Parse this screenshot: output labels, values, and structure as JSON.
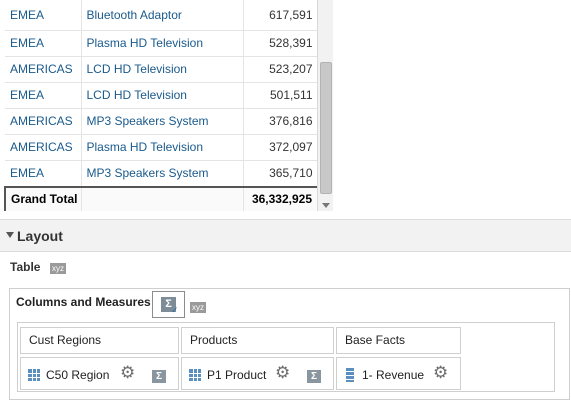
{
  "results": {
    "rows": [
      {
        "region": "EMEA",
        "product": "Bluetooth Adaptor",
        "value": "617,591"
      },
      {
        "region": "EMEA",
        "product": "Plasma HD Television",
        "value": "528,391"
      },
      {
        "region": "AMERICAS",
        "product": "LCD HD Television",
        "value": "523,207"
      },
      {
        "region": "EMEA",
        "product": "LCD HD Television",
        "value": "501,511"
      },
      {
        "region": "AMERICAS",
        "product": "MP3 Speakers System",
        "value": "376,816"
      },
      {
        "region": "AMERICAS",
        "product": "Plasma HD Television",
        "value": "372,097"
      },
      {
        "region": "EMEA",
        "product": "MP3 Speakers System",
        "value": "365,710"
      }
    ],
    "grand_total": {
      "label": "Grand Total",
      "value": "36,332,925"
    }
  },
  "layout": {
    "section_title": "Layout",
    "view_label": "Table",
    "tag": "xyz",
    "columns_and_measures": {
      "label": "Columns and Measures",
      "tag": "xyz",
      "sum_icon": "sigma-totals-icon",
      "columns": [
        {
          "header": "Cust Regions",
          "item": "C50 Region",
          "icon": "column-icon",
          "has_totals": true
        },
        {
          "header": "Products",
          "item": "P1 Product",
          "icon": "column-icon",
          "has_totals": true
        },
        {
          "header": "Base Facts",
          "item": "1- Revenue",
          "icon": "measure-icon",
          "has_totals": false
        }
      ]
    }
  },
  "colors": {
    "link_text": "#1a5a8c",
    "panel_bg": "#f2f2f2",
    "icon_blue": "#5b8fc0"
  }
}
